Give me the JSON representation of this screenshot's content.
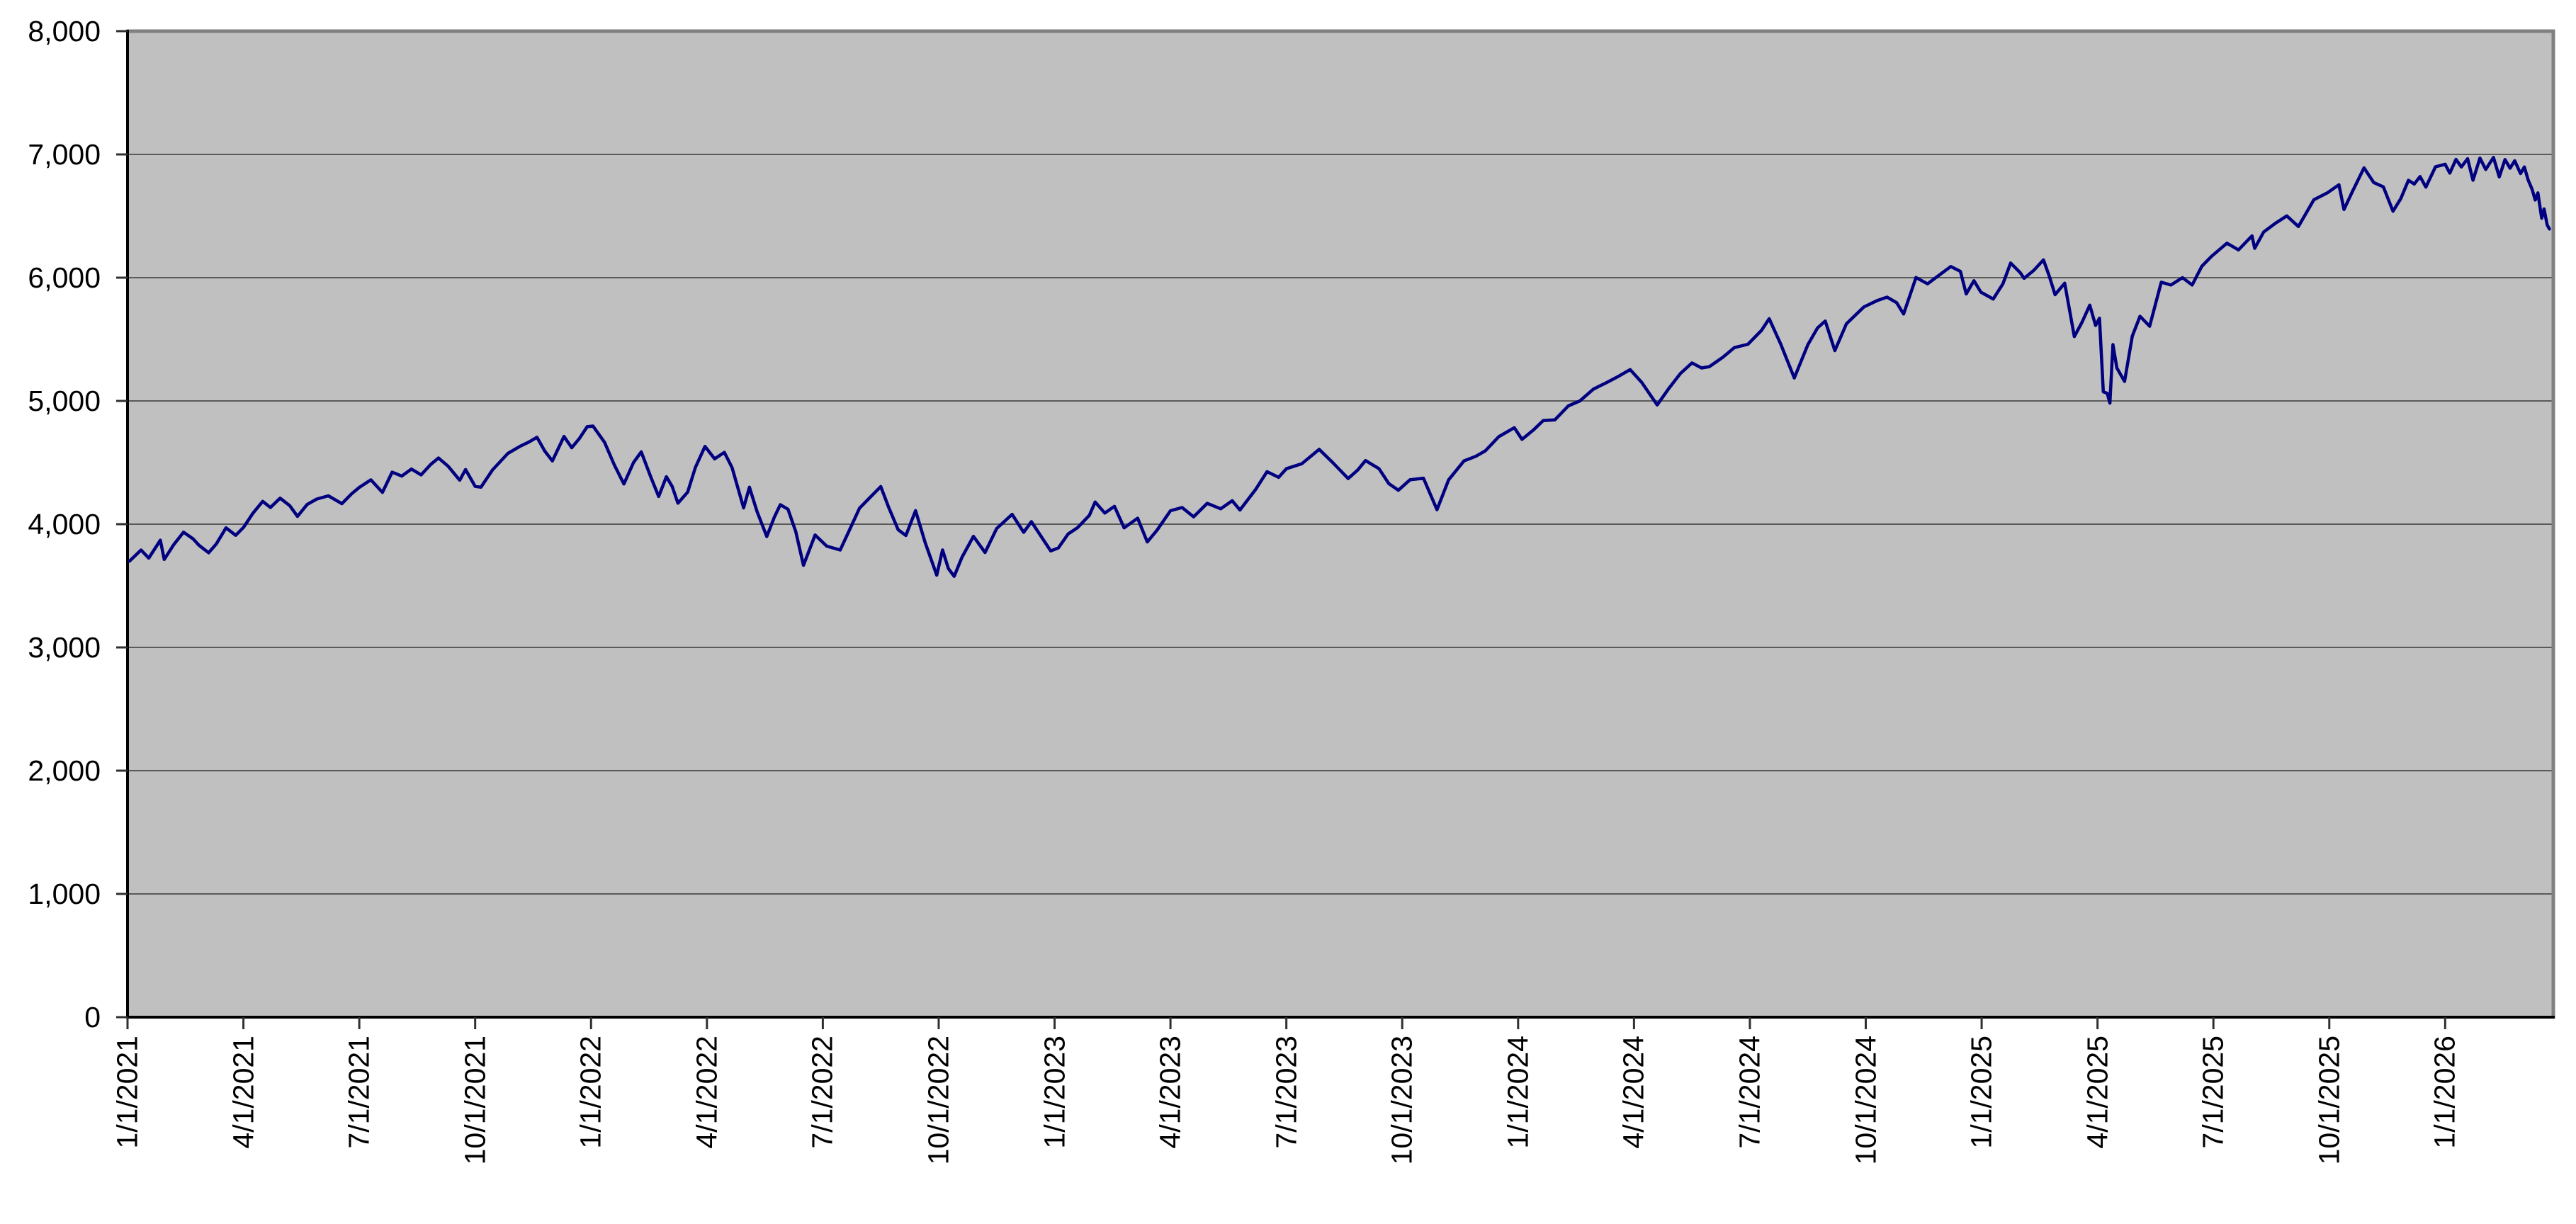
{
  "chart_data": {
    "type": "line",
    "title": "",
    "legend": false,
    "grid": true,
    "x_axis": {
      "kind": "date",
      "tick_labels": [
        "1/1/2021",
        "4/1/2021",
        "7/1/2021",
        "10/1/2021",
        "1/1/2022",
        "4/1/2022",
        "7/1/2022",
        "10/1/2022",
        "1/1/2023",
        "4/1/2023",
        "7/1/2023",
        "10/1/2023",
        "1/1/2024",
        "4/1/2024",
        "7/1/2024",
        "10/1/2024",
        "1/1/2025",
        "4/1/2025",
        "7/1/2025",
        "10/1/2025",
        "1/1/2026"
      ],
      "months_per_tick": 3,
      "range_months": [
        0,
        62.8
      ],
      "label_rotation_degrees": 90
    },
    "y_axis": {
      "tick_labels": [
        "0",
        "1,000",
        "2,000",
        "3,000",
        "4,000",
        "5,000",
        "6,000",
        "7,000",
        "8,000"
      ],
      "range": [
        0,
        8000
      ],
      "tick_step": 1000
    },
    "series": [
      {
        "name": "index-value-line",
        "points_month_value": [
          [
            0.05,
            3700
          ],
          [
            0.35,
            3790
          ],
          [
            0.55,
            3725
          ],
          [
            0.85,
            3870
          ],
          [
            0.95,
            3714
          ],
          [
            1.2,
            3835
          ],
          [
            1.45,
            3935
          ],
          [
            1.7,
            3880
          ],
          [
            1.85,
            3829
          ],
          [
            2.1,
            3768
          ],
          [
            2.3,
            3840
          ],
          [
            2.55,
            3970
          ],
          [
            2.8,
            3910
          ],
          [
            3.0,
            3973
          ],
          [
            3.25,
            4090
          ],
          [
            3.5,
            4185
          ],
          [
            3.7,
            4135
          ],
          [
            3.95,
            4211
          ],
          [
            4.2,
            4150
          ],
          [
            4.4,
            4063
          ],
          [
            4.65,
            4160
          ],
          [
            4.9,
            4204
          ],
          [
            5.2,
            4230
          ],
          [
            5.55,
            4166
          ],
          [
            5.8,
            4246
          ],
          [
            6.0,
            4298
          ],
          [
            6.3,
            4360
          ],
          [
            6.6,
            4258
          ],
          [
            6.85,
            4422
          ],
          [
            7.1,
            4390
          ],
          [
            7.35,
            4447
          ],
          [
            7.6,
            4400
          ],
          [
            7.85,
            4485
          ],
          [
            8.05,
            4537
          ],
          [
            8.3,
            4470
          ],
          [
            8.6,
            4357
          ],
          [
            8.75,
            4443
          ],
          [
            9.0,
            4307
          ],
          [
            9.15,
            4300
          ],
          [
            9.45,
            4440
          ],
          [
            9.85,
            4575
          ],
          [
            10.15,
            4630
          ],
          [
            10.4,
            4668
          ],
          [
            10.6,
            4705
          ],
          [
            10.8,
            4594
          ],
          [
            11.0,
            4513
          ],
          [
            11.3,
            4712
          ],
          [
            11.5,
            4620
          ],
          [
            11.7,
            4696
          ],
          [
            11.9,
            4791
          ],
          [
            12.05,
            4796
          ],
          [
            12.35,
            4663
          ],
          [
            12.6,
            4482
          ],
          [
            12.85,
            4326
          ],
          [
            13.1,
            4500
          ],
          [
            13.3,
            4587
          ],
          [
            13.55,
            4380
          ],
          [
            13.75,
            4225
          ],
          [
            13.95,
            4385
          ],
          [
            14.1,
            4306
          ],
          [
            14.25,
            4170
          ],
          [
            14.5,
            4260
          ],
          [
            14.7,
            4460
          ],
          [
            14.95,
            4631
          ],
          [
            15.2,
            4530
          ],
          [
            15.45,
            4583
          ],
          [
            15.65,
            4459
          ],
          [
            15.95,
            4132
          ],
          [
            16.1,
            4300
          ],
          [
            16.3,
            4100
          ],
          [
            16.55,
            3900
          ],
          [
            16.75,
            4060
          ],
          [
            16.9,
            4158
          ],
          [
            17.1,
            4120
          ],
          [
            17.3,
            3940
          ],
          [
            17.5,
            3666
          ],
          [
            17.8,
            3912
          ],
          [
            18.1,
            3822
          ],
          [
            18.45,
            3790
          ],
          [
            18.7,
            3960
          ],
          [
            18.95,
            4130
          ],
          [
            19.2,
            4210
          ],
          [
            19.5,
            4305
          ],
          [
            19.7,
            4140
          ],
          [
            19.95,
            3955
          ],
          [
            20.15,
            3908
          ],
          [
            20.4,
            4110
          ],
          [
            20.65,
            3850
          ],
          [
            20.95,
            3586
          ],
          [
            21.1,
            3791
          ],
          [
            21.25,
            3640
          ],
          [
            21.4,
            3577
          ],
          [
            21.6,
            3730
          ],
          [
            21.9,
            3901
          ],
          [
            22.2,
            3770
          ],
          [
            22.5,
            3965
          ],
          [
            22.9,
            4080
          ],
          [
            23.2,
            3934
          ],
          [
            23.4,
            4020
          ],
          [
            23.9,
            3783
          ],
          [
            24.1,
            3808
          ],
          [
            24.35,
            3920
          ],
          [
            24.6,
            3973
          ],
          [
            24.9,
            4071
          ],
          [
            25.05,
            4180
          ],
          [
            25.3,
            4090
          ],
          [
            25.55,
            4145
          ],
          [
            25.8,
            3970
          ],
          [
            26.15,
            4048
          ],
          [
            26.4,
            3856
          ],
          [
            26.65,
            3950
          ],
          [
            27.0,
            4109
          ],
          [
            27.3,
            4135
          ],
          [
            27.6,
            4060
          ],
          [
            27.95,
            4169
          ],
          [
            28.3,
            4125
          ],
          [
            28.6,
            4190
          ],
          [
            28.8,
            4115
          ],
          [
            29.2,
            4280
          ],
          [
            29.5,
            4426
          ],
          [
            29.8,
            4380
          ],
          [
            30.0,
            4450
          ],
          [
            30.4,
            4490
          ],
          [
            30.85,
            4607
          ],
          [
            31.2,
            4500
          ],
          [
            31.6,
            4370
          ],
          [
            31.85,
            4440
          ],
          [
            32.05,
            4516
          ],
          [
            32.4,
            4450
          ],
          [
            32.65,
            4330
          ],
          [
            32.9,
            4275
          ],
          [
            33.2,
            4360
          ],
          [
            33.55,
            4373
          ],
          [
            33.9,
            4117
          ],
          [
            34.2,
            4360
          ],
          [
            34.6,
            4514
          ],
          [
            34.9,
            4550
          ],
          [
            35.15,
            4595
          ],
          [
            35.5,
            4710
          ],
          [
            35.9,
            4783
          ],
          [
            36.1,
            4688
          ],
          [
            36.4,
            4765
          ],
          [
            36.65,
            4840
          ],
          [
            36.95,
            4846
          ],
          [
            37.3,
            4960
          ],
          [
            37.6,
            5000
          ],
          [
            37.95,
            5096
          ],
          [
            38.3,
            5150
          ],
          [
            38.6,
            5200
          ],
          [
            38.9,
            5254
          ],
          [
            39.2,
            5150
          ],
          [
            39.6,
            4967
          ],
          [
            39.9,
            5100
          ],
          [
            40.2,
            5222
          ],
          [
            40.5,
            5308
          ],
          [
            40.75,
            5267
          ],
          [
            40.95,
            5278
          ],
          [
            41.3,
            5354
          ],
          [
            41.6,
            5433
          ],
          [
            41.95,
            5460
          ],
          [
            42.3,
            5572
          ],
          [
            42.5,
            5667
          ],
          [
            42.8,
            5459
          ],
          [
            43.15,
            5186
          ],
          [
            43.5,
            5455
          ],
          [
            43.75,
            5592
          ],
          [
            43.95,
            5648
          ],
          [
            44.2,
            5408
          ],
          [
            44.5,
            5626
          ],
          [
            44.75,
            5702
          ],
          [
            44.95,
            5762
          ],
          [
            45.3,
            5815
          ],
          [
            45.55,
            5842
          ],
          [
            45.8,
            5797
          ],
          [
            45.98,
            5705
          ],
          [
            46.3,
            6001
          ],
          [
            46.6,
            5950
          ],
          [
            46.95,
            6032
          ],
          [
            47.2,
            6090
          ],
          [
            47.45,
            6051
          ],
          [
            47.6,
            5868
          ],
          [
            47.8,
            5975
          ],
          [
            47.98,
            5882
          ],
          [
            48.3,
            5827
          ],
          [
            48.55,
            5950
          ],
          [
            48.75,
            6119
          ],
          [
            49.0,
            6040
          ],
          [
            49.1,
            5994
          ],
          [
            49.35,
            6060
          ],
          [
            49.6,
            6144
          ],
          [
            49.75,
            6013
          ],
          [
            49.9,
            5862
          ],
          [
            50.15,
            5955
          ],
          [
            50.4,
            5522
          ],
          [
            50.6,
            5639
          ],
          [
            50.8,
            5777
          ],
          [
            50.95,
            5612
          ],
          [
            51.05,
            5671
          ],
          [
            51.15,
            5074
          ],
          [
            51.25,
            5062
          ],
          [
            51.32,
            4983
          ],
          [
            51.4,
            5457
          ],
          [
            51.5,
            5268
          ],
          [
            51.7,
            5158
          ],
          [
            51.9,
            5525
          ],
          [
            52.1,
            5687
          ],
          [
            52.35,
            5606
          ],
          [
            52.65,
            5963
          ],
          [
            52.9,
            5940
          ],
          [
            53.2,
            6000
          ],
          [
            53.45,
            5940
          ],
          [
            53.7,
            6092
          ],
          [
            53.95,
            6173
          ],
          [
            54.35,
            6280
          ],
          [
            54.65,
            6225
          ],
          [
            55.0,
            6339
          ],
          [
            55.07,
            6238
          ],
          [
            55.3,
            6370
          ],
          [
            55.6,
            6440
          ],
          [
            55.9,
            6501
          ],
          [
            56.2,
            6415
          ],
          [
            56.6,
            6632
          ],
          [
            56.95,
            6688
          ],
          [
            57.25,
            6754
          ],
          [
            57.38,
            6553
          ],
          [
            57.6,
            6700
          ],
          [
            57.9,
            6891
          ],
          [
            58.15,
            6772
          ],
          [
            58.4,
            6737
          ],
          [
            58.65,
            6539
          ],
          [
            58.85,
            6640
          ],
          [
            59.05,
            6790
          ],
          [
            59.2,
            6760
          ],
          [
            59.35,
            6820
          ],
          [
            59.5,
            6735
          ],
          [
            59.75,
            6900
          ],
          [
            60.0,
            6920
          ],
          [
            60.12,
            6848
          ],
          [
            60.28,
            6960
          ],
          [
            60.42,
            6898
          ],
          [
            60.58,
            6965
          ],
          [
            60.72,
            6790
          ],
          [
            60.9,
            6970
          ],
          [
            61.05,
            6878
          ],
          [
            61.25,
            6975
          ],
          [
            61.4,
            6818
          ],
          [
            61.55,
            6958
          ],
          [
            61.68,
            6888
          ],
          [
            61.8,
            6948
          ],
          [
            61.95,
            6845
          ],
          [
            62.05,
            6898
          ],
          [
            62.15,
            6790
          ],
          [
            62.25,
            6718
          ],
          [
            62.33,
            6630
          ],
          [
            62.4,
            6688
          ],
          [
            62.5,
            6482
          ],
          [
            62.56,
            6558
          ],
          [
            62.64,
            6428
          ],
          [
            62.7,
            6395
          ]
        ]
      }
    ],
    "colors": {
      "line": "#000080",
      "plot_background": "#C0C0C0",
      "outer_background": "#FFFFFF",
      "gridline": "#5A5A5A",
      "axis_line": "#000000",
      "border_top_right": "#808080",
      "tick": "#303030",
      "text": "#000000"
    }
  }
}
